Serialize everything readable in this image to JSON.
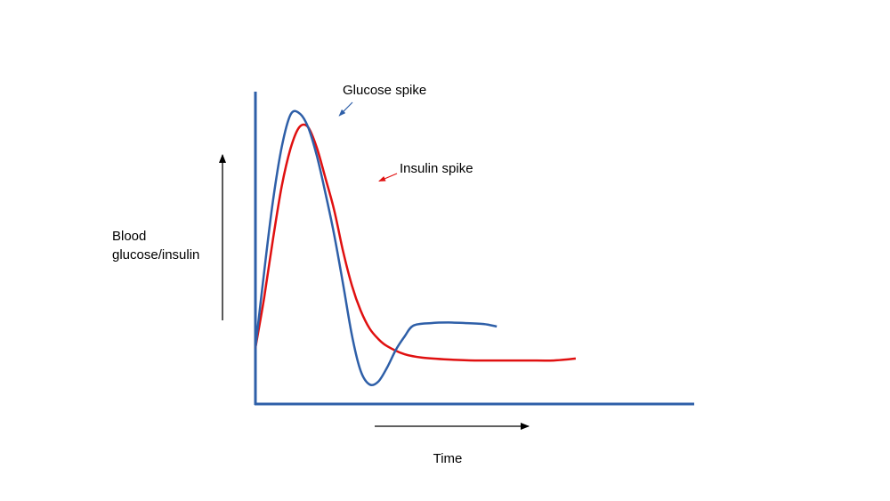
{
  "chart_data": {
    "type": "line",
    "title": "",
    "ylabel_lines": [
      "Blood",
      "glucose/insulin"
    ],
    "xlabel": "Time",
    "xlim": [
      0,
      100
    ],
    "ylim": [
      0,
      100
    ],
    "grid": false,
    "axis_color": "#2e5fa8",
    "annotations": [
      {
        "text": "Glucose spike",
        "series": "glucose",
        "point": [
          19.1,
          92.3
        ],
        "color": "#2e5fa8"
      },
      {
        "text": "Insulin spike",
        "series": "insulin",
        "point": [
          28.2,
          71.3
        ],
        "color": "#e01010"
      }
    ],
    "series": [
      {
        "key": "glucose",
        "color": "#2e5fa8",
        "points": [
          [
            0,
            17.7
          ],
          [
            2,
            42.3
          ],
          [
            4,
            64.9
          ],
          [
            6,
            82.3
          ],
          [
            8,
            92.6
          ],
          [
            10,
            93.1
          ],
          [
            12,
            88.6
          ],
          [
            14,
            79.4
          ],
          [
            16,
            67.1
          ],
          [
            18,
            53.7
          ],
          [
            20,
            38.0
          ],
          [
            22,
            21.7
          ],
          [
            24,
            10.3
          ],
          [
            26,
            6.0
          ],
          [
            28,
            6.9
          ],
          [
            30,
            11.4
          ],
          [
            32,
            17.1
          ],
          [
            34,
            21.4
          ],
          [
            36,
            24.9
          ],
          [
            40,
            25.7
          ],
          [
            44,
            25.9
          ],
          [
            48,
            25.7
          ],
          [
            52,
            25.4
          ],
          [
            55,
            24.6
          ]
        ]
      },
      {
        "key": "insulin",
        "color": "#e01010",
        "points": [
          [
            0,
            17.7
          ],
          [
            2,
            34.0
          ],
          [
            4,
            52.6
          ],
          [
            6,
            69.7
          ],
          [
            8,
            81.7
          ],
          [
            10,
            88.6
          ],
          [
            12,
            88.6
          ],
          [
            14,
            82.0
          ],
          [
            16,
            72.0
          ],
          [
            18,
            61.7
          ],
          [
            20,
            48.6
          ],
          [
            22,
            37.7
          ],
          [
            24,
            29.7
          ],
          [
            26,
            24.0
          ],
          [
            28,
            20.6
          ],
          [
            30,
            18.3
          ],
          [
            34,
            15.7
          ],
          [
            38,
            14.6
          ],
          [
            44,
            14.0
          ],
          [
            50,
            13.7
          ],
          [
            56,
            13.7
          ],
          [
            62,
            13.7
          ],
          [
            68,
            13.7
          ],
          [
            73,
            14.3
          ]
        ]
      }
    ]
  }
}
